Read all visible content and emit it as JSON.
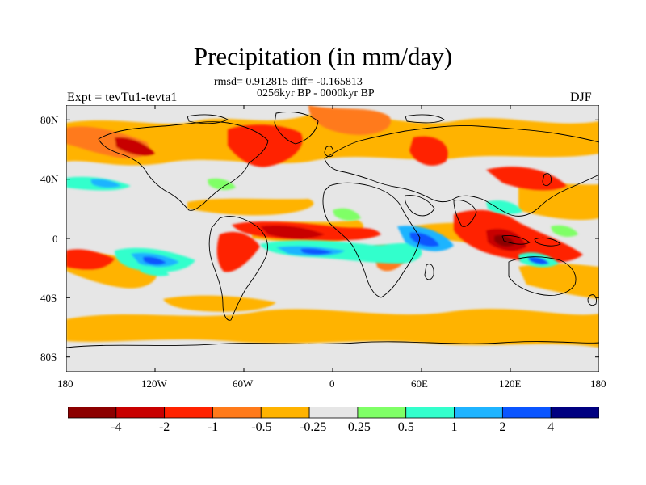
{
  "header": {
    "title": "Precipitation (in mm/day)",
    "stats": "rmsd= 0.912815 diff= -0.165813",
    "period": "0256kyr BP - 0000kyr BP",
    "left_label": "Expt = tevTu1-tevta1",
    "right_label": "DJF"
  },
  "map": {
    "projection": "cylindrical-equidistant",
    "lat_ticks": [
      "80N",
      "40N",
      "0",
      "40S",
      "80S"
    ],
    "lon_ticks": [
      "180",
      "120W",
      "60W",
      "0",
      "60E",
      "120E",
      "180"
    ],
    "land_outline_color": "#000000",
    "background_color": "#e6e6e6"
  },
  "colorbar": {
    "colors": [
      "#8c0000",
      "#c80000",
      "#ff2200",
      "#ff7a1a",
      "#ffb300",
      "#e6e6e6",
      "#7fff66",
      "#33ffcc",
      "#1fb4ff",
      "#0a55ff",
      "#000080"
    ],
    "labels": [
      "-4",
      "-2",
      "-1",
      "-0.5",
      "-0.25",
      "0.25",
      "0.5",
      "1",
      "2",
      "4"
    ]
  }
}
